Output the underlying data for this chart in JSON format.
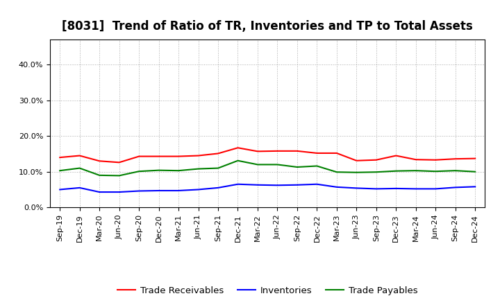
{
  "title": "[8031]  Trend of Ratio of TR, Inventories and TP to Total Assets",
  "x_labels": [
    "Sep-19",
    "Dec-19",
    "Mar-20",
    "Jun-20",
    "Sep-20",
    "Dec-20",
    "Mar-21",
    "Jun-21",
    "Sep-21",
    "Dec-21",
    "Mar-22",
    "Jun-22",
    "Sep-22",
    "Dec-22",
    "Mar-23",
    "Jun-23",
    "Sep-23",
    "Dec-23",
    "Mar-24",
    "Jun-24",
    "Sep-24",
    "Dec-24"
  ],
  "trade_receivables": [
    0.14,
    0.145,
    0.13,
    0.126,
    0.143,
    0.143,
    0.143,
    0.145,
    0.151,
    0.167,
    0.157,
    0.158,
    0.158,
    0.152,
    0.152,
    0.131,
    0.133,
    0.145,
    0.134,
    0.133,
    0.136,
    0.137
  ],
  "inventories": [
    0.05,
    0.055,
    0.043,
    0.043,
    0.046,
    0.047,
    0.047,
    0.05,
    0.055,
    0.065,
    0.063,
    0.062,
    0.063,
    0.065,
    0.057,
    0.054,
    0.052,
    0.053,
    0.052,
    0.052,
    0.056,
    0.058
  ],
  "trade_payables": [
    0.103,
    0.11,
    0.09,
    0.089,
    0.101,
    0.104,
    0.103,
    0.108,
    0.11,
    0.131,
    0.12,
    0.12,
    0.113,
    0.116,
    0.099,
    0.098,
    0.099,
    0.102,
    0.103,
    0.101,
    0.103,
    0.1
  ],
  "color_tr": "#ff0000",
  "color_inv": "#0000ff",
  "color_tp": "#008000",
  "ylim": [
    0.0,
    0.47
  ],
  "yticks": [
    0.0,
    0.1,
    0.2,
    0.3,
    0.4
  ],
  "legend_labels": [
    "Trade Receivables",
    "Inventories",
    "Trade Payables"
  ],
  "bg_color": "#ffffff",
  "plot_bg_color": "#ffffff",
  "grid_color": "#aaaaaa",
  "title_fontsize": 12,
  "tick_fontsize": 8,
  "legend_fontsize": 9.5
}
